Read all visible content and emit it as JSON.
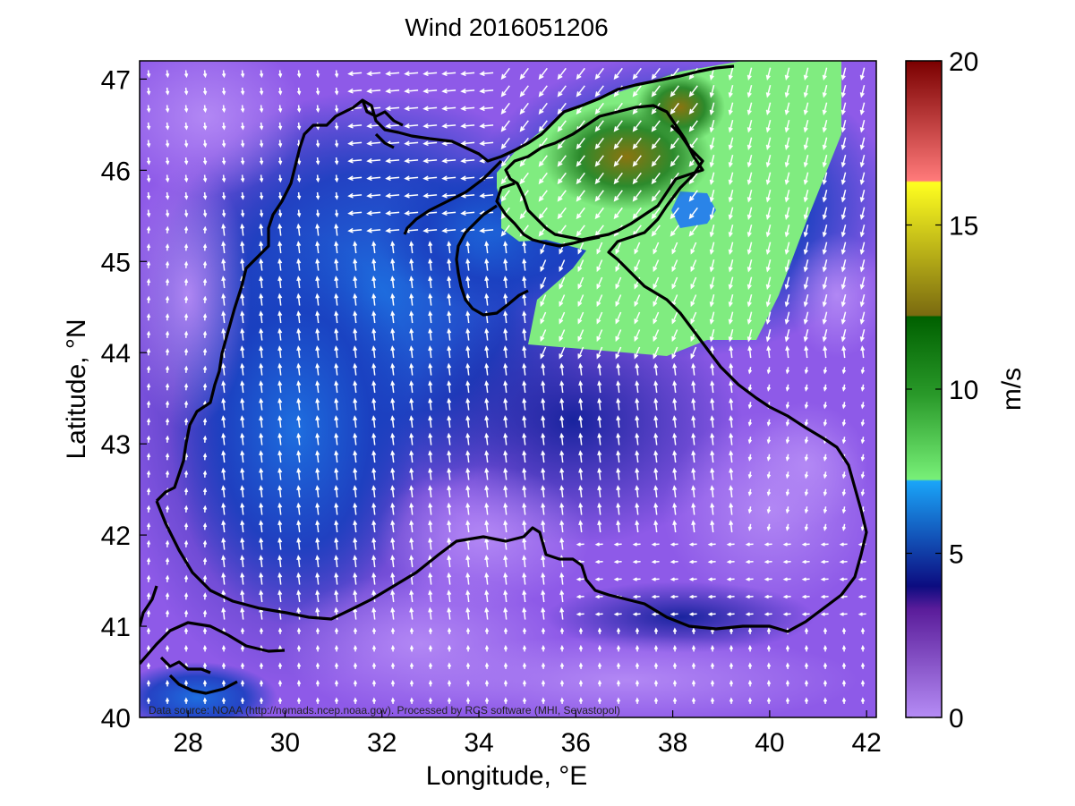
{
  "figure": {
    "title": "Wind 2016051206",
    "xlabel": "Longitude, °E",
    "ylabel": "Latitude, °N",
    "credit": "Data source: NOAA (http://nomads.ncep.noaa.gov). Processed by RCS software (MHI, Sevastopol)",
    "xticks": [
      "28",
      "30",
      "32",
      "34",
      "36",
      "38",
      "40",
      "42"
    ],
    "yticks": [
      "40",
      "41",
      "42",
      "43",
      "44",
      "45",
      "46",
      "47"
    ]
  },
  "colorbar": {
    "label": "m/s",
    "ticks": [
      "0",
      "5",
      "10",
      "15",
      "20"
    ],
    "range": [
      0,
      20
    ],
    "stops": [
      {
        "value": 0,
        "color": "#b58cf5"
      },
      {
        "value": 3.3,
        "color": "#5a1c9a"
      },
      {
        "value": 4.0,
        "color": "#0c0c80"
      },
      {
        "value": 7.2,
        "color": "#1aa5f8"
      },
      {
        "value": 7.25,
        "color": "#78f078"
      },
      {
        "value": 9.8,
        "color": "#2a9a2a"
      },
      {
        "value": 12.2,
        "color": "#006000"
      },
      {
        "value": 12.25,
        "color": "#7a6a10"
      },
      {
        "value": 16.3,
        "color": "#ffff20"
      },
      {
        "value": 16.35,
        "color": "#ff7a7a"
      },
      {
        "value": 20,
        "color": "#7a0000"
      }
    ]
  },
  "map": {
    "extent": {
      "lon": [
        27,
        42.2
      ],
      "lat": [
        40,
        47.2
      ]
    },
    "field_colors": {
      "calm": "#9f68f0",
      "light": "#6a2fc6",
      "moderate": "#1432b8",
      "fresh": "#1e78e6",
      "strong": "#80ec80",
      "gale": "#2f8a2f",
      "peak": "#8a7a10"
    },
    "coastline_color": "#000000",
    "arrow_color": "#ffffff"
  }
}
